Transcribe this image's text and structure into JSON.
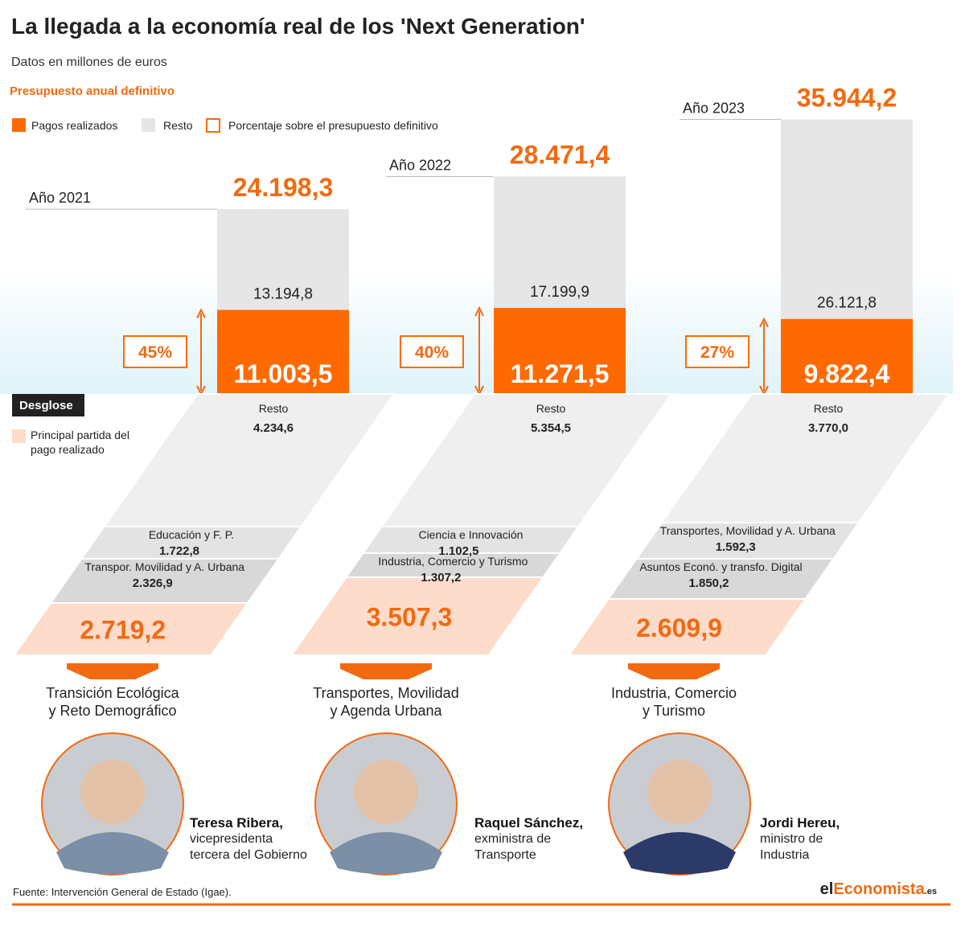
{
  "title": "La llegada a la economía real de los 'Next Generation'",
  "subtitle": "Datos en millones de euros",
  "budget_label": "Presupuesto anual definitivo",
  "legend": [
    "Pagos realizados",
    "Resto",
    "Porcentaje sobre el presupuesto definitivo"
  ],
  "desglose_label": "Desglose",
  "desglose_legend": [
    "Principal partida del",
    "pago realizado"
  ],
  "years": [
    {
      "label": "Año 2021",
      "total": "24.198,3",
      "resto": "13.194,8",
      "pagos": "11.003,5",
      "percent": "45%",
      "breakdown_rest_label": "Resto",
      "breakdown_rest": "4.234,6",
      "items": [
        {
          "label": "Educación y F. P.",
          "value": "1.722,8"
        },
        {
          "label": "Transpor. Movilidad y A. Urbana",
          "value": "2.326,9"
        }
      ],
      "main_value": "2.719,2",
      "ministry": [
        "Transición Ecológica",
        "y Reto Demográfico"
      ],
      "person": {
        "name": "Teresa Ribera,",
        "role": [
          "vicepresidenta",
          "tercera del Gobierno"
        ]
      }
    },
    {
      "label": "Año 2022",
      "total": "28.471,4",
      "resto": "17.199,9",
      "pagos": "11.271,5",
      "percent": "40%",
      "breakdown_rest_label": "Resto",
      "breakdown_rest": "5.354,5",
      "items": [
        {
          "label": "Ciencia e Innovación",
          "value": "1.102,5"
        },
        {
          "label": "Industria, Comercio y Turismo",
          "value": "1.307,2"
        }
      ],
      "main_value": "3.507,3",
      "ministry": [
        "Transportes, Movilidad",
        "y Agenda Urbana"
      ],
      "person": {
        "name": "Raquel Sánchez,",
        "role": [
          "exministra de",
          "Transporte"
        ]
      }
    },
    {
      "label": "Año 2023",
      "total": "35.944,2",
      "resto": "26.121,8",
      "pagos": "9.822,4",
      "percent": "27%",
      "breakdown_rest_label": "Resto",
      "breakdown_rest": "3.770,0",
      "items": [
        {
          "label": "Transportes, Movilidad y A. Urbana",
          "value": "1.592,3"
        },
        {
          "label": "Asuntos Econó. y transfo. Digital",
          "value": "1.850,2"
        }
      ],
      "main_value": "2.609,9",
      "ministry": [
        "Industria, Comercio",
        "y Turismo"
      ],
      "person": {
        "name": "Jordi Hereu,",
        "role": [
          "ministro de",
          "Industria"
        ]
      }
    }
  ],
  "source": "Fuente: Intervención General de Estado (Igae).",
  "brand": [
    "el",
    "Economista",
    ".es"
  ]
}
